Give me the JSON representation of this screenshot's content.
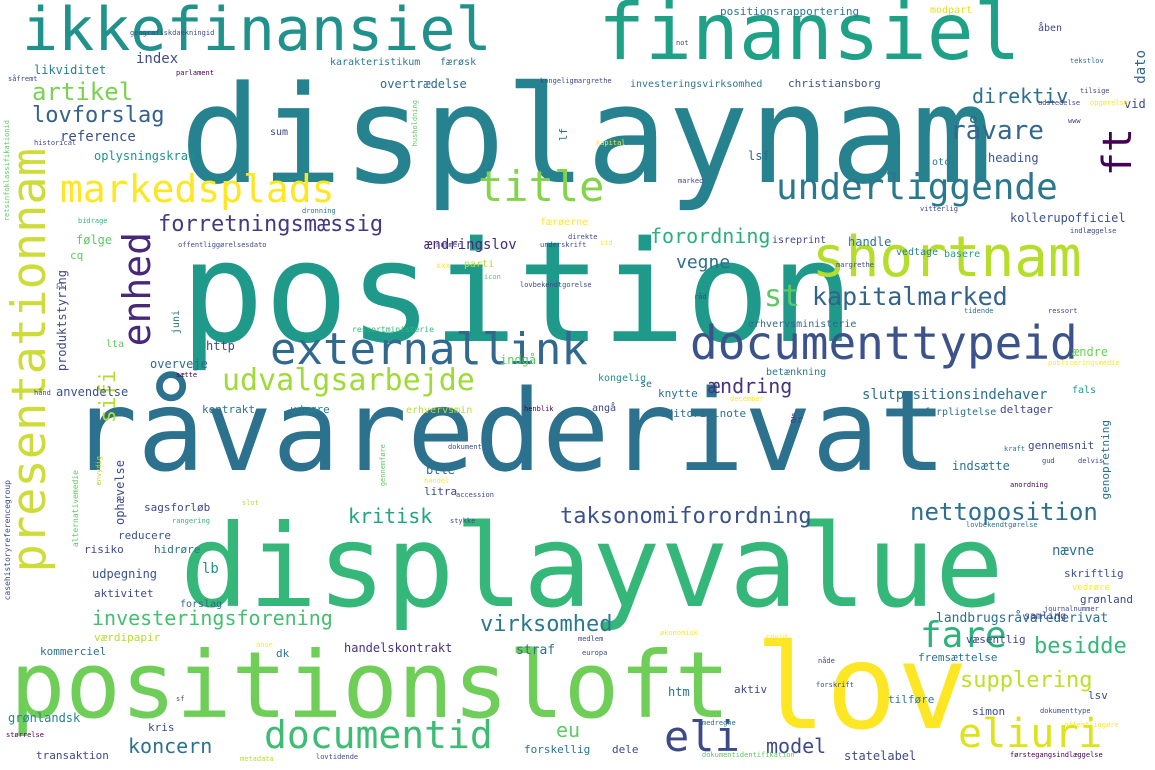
{
  "words": [
    {
      "text": "displaynam",
      "color": "#26828e"
    },
    {
      "text": "position",
      "color": "#1f9a8a"
    },
    {
      "text": "råvarederivat",
      "color": "#2c718e"
    },
    {
      "text": "displayvalue",
      "color": "#35b779"
    },
    {
      "text": "positionsloft",
      "color": "#6ece58"
    },
    {
      "text": "lov",
      "color": "#fde725"
    },
    {
      "text": "finansiel",
      "color": "#1fa188"
    },
    {
      "text": "ikkefinansiel",
      "color": "#21918c"
    },
    {
      "text": "shortnam",
      "color": "#b5de2b"
    },
    {
      "text": "documenttypeid",
      "color": "#3b528b"
    },
    {
      "text": "externallink",
      "color": "#31688e"
    },
    {
      "text": "presentationnam",
      "color": "#cddc39"
    },
    {
      "text": "markedsplads",
      "color": "#fde725"
    },
    {
      "text": "title",
      "color": "#84d44b"
    },
    {
      "text": "underliggende",
      "color": "#2a788e"
    },
    {
      "text": "enhed",
      "color": "#482878"
    },
    {
      "text": "udvalgsarbejde",
      "color": "#a0da39"
    },
    {
      "text": "documentid",
      "color": "#3dbc74"
    },
    {
      "text": "eliuri",
      "color": "#dde318"
    },
    {
      "text": "eli",
      "color": "#3e4989"
    },
    {
      "text": "fare",
      "color": "#2db27d"
    },
    {
      "text": "artikel",
      "color": "#7ad151"
    },
    {
      "text": "lovforslag",
      "color": "#34618d"
    },
    {
      "text": "kapitalmarked",
      "color": "#33638d"
    },
    {
      "text": "st",
      "color": "#5ec962"
    },
    {
      "text": "ft",
      "color": "#440154"
    },
    {
      "text": "nettoposition",
      "color": "#2e6f8e"
    },
    {
      "text": "råvare",
      "color": "#31688e"
    },
    {
      "text": "direktiv",
      "color": "#2c728e"
    },
    {
      "text": "forretningsmæssig",
      "color": "#443983"
    },
    {
      "text": "forordning",
      "color": "#2ab07f"
    },
    {
      "text": "vegne",
      "color": "#2e6e8e"
    },
    {
      "text": "ændring",
      "color": "#46337e"
    },
    {
      "text": "taksonomiforordning",
      "color": "#3b528b"
    },
    {
      "text": "kritisk",
      "color": "#20a486"
    },
    {
      "text": "investeringsforening",
      "color": "#44bf70"
    },
    {
      "text": "virksomhed",
      "color": "#2a788e"
    },
    {
      "text": "besidde",
      "color": "#35b779"
    },
    {
      "text": "supplering",
      "color": "#bddf26"
    },
    {
      "text": "koncern",
      "color": "#2c718e"
    },
    {
      "text": "model",
      "color": "#3e4989"
    },
    {
      "text": "eu",
      "color": "#5ec962"
    },
    {
      "text": "sifi",
      "color": "#b5de2b"
    },
    {
      "text": "reference",
      "color": "#3b528b"
    },
    {
      "text": "index",
      "color": "#3e4c8a"
    },
    {
      "text": "likviditet",
      "color": "#26828e"
    },
    {
      "text": "karakteristikum",
      "color": "#2a788e"
    },
    {
      "text": "færøsk",
      "color": "#2c728e"
    },
    {
      "text": "overtrædelse",
      "color": "#31688e"
    },
    {
      "text": "christiansborg",
      "color": "#3b528b"
    },
    {
      "text": "investeringsvirksomhed",
      "color": "#2a788e"
    },
    {
      "text": "positionsrapportering",
      "color": "#2a788e"
    },
    {
      "text": "modpart",
      "color": "#dde318"
    },
    {
      "text": "åben",
      "color": "#3e4989"
    },
    {
      "text": "dato",
      "color": "#31688e"
    },
    {
      "text": "vid",
      "color": "#3e4989"
    },
    {
      "text": "oplysningskrav",
      "color": "#21918c"
    },
    {
      "text": "heading",
      "color": "#3b528b"
    },
    {
      "text": "lsf",
      "color": "#31688e"
    },
    {
      "text": "otc",
      "color": "#2a788e"
    },
    {
      "text": "handle",
      "color": "#2c728e"
    },
    {
      "text": "isreprint",
      "color": "#3e4989"
    },
    {
      "text": "kollerupofficiel",
      "color": "#3b528b"
    },
    {
      "text": "vedtage",
      "color": "#26828e"
    },
    {
      "text": "basere",
      "color": "#1f9e89"
    },
    {
      "text": "følge",
      "color": "#5ec962"
    },
    {
      "text": "ændringslov",
      "color": "#482878"
    },
    {
      "text": "http",
      "color": "#3e4989"
    },
    {
      "text": "overveje",
      "color": "#31688e"
    },
    {
      "text": "anvendelse",
      "color": "#3b528b"
    },
    {
      "text": "produktstyring",
      "color": "#3e4989"
    },
    {
      "text": "kontrakt",
      "color": "#2c728e"
    },
    {
      "text": "udgøre",
      "color": "#26828e"
    },
    {
      "text": "erhvervsmin",
      "color": "#b5de2b"
    },
    {
      "text": "editorialnote",
      "color": "#2e6e8e"
    },
    {
      "text": "deltager",
      "color": "#3e4989"
    },
    {
      "text": "slutpositionsindehaver",
      "color": "#2c728e"
    },
    {
      "text": "betænkning",
      "color": "#2a788e"
    },
    {
      "text": "knytte",
      "color": "#2c728e"
    },
    {
      "text": "indgå",
      "color": "#5ec962"
    },
    {
      "text": "kongelig",
      "color": "#21918c"
    },
    {
      "text": "fals",
      "color": "#1f9e89"
    },
    {
      "text": "forpligtelse",
      "color": "#2c728e"
    },
    {
      "text": "erhvervsministerie",
      "color": "#31688e"
    },
    {
      "text": "ændre",
      "color": "#6ece58"
    },
    {
      "text": "gennemsnit",
      "color": "#3e4989"
    },
    {
      "text": "indsætte",
      "color": "#2c728e"
    },
    {
      "text": "genopretning",
      "color": "#2c728e"
    },
    {
      "text": "btle",
      "color": "#2c728e"
    },
    {
      "text": "ophævelse",
      "color": "#3e4989"
    },
    {
      "text": "litra",
      "color": "#3e4989"
    },
    {
      "text": "sagsforløb",
      "color": "#3e4989"
    },
    {
      "text": "reducere",
      "color": "#3b528b"
    },
    {
      "text": "risiko",
      "color": "#3e4989"
    },
    {
      "text": "hidrøre",
      "color": "#2c728e"
    },
    {
      "text": "udpegning",
      "color": "#3b528b"
    },
    {
      "text": "aktivitet",
      "color": "#3e4989"
    },
    {
      "text": "nævne",
      "color": "#2c718e"
    },
    {
      "text": "lb",
      "color": "#21918c"
    },
    {
      "text": "forslag",
      "color": "#31688e"
    },
    {
      "text": "værdipapir",
      "color": "#b5de2b"
    },
    {
      "text": "landbrugsråvarederivat",
      "color": "#2e6f8e"
    },
    {
      "text": "væsentlig",
      "color": "#3e4989"
    },
    {
      "text": "grønland",
      "color": "#3e4989"
    },
    {
      "text": "skriftlig",
      "color": "#3b528b"
    },
    {
      "text": "handelskontrakt",
      "color": "#46337e"
    },
    {
      "text": "straf",
      "color": "#2c728e"
    },
    {
      "text": "samling",
      "color": "#3e4989"
    },
    {
      "text": "kommerciel",
      "color": "#2c728e"
    },
    {
      "text": "dk",
      "color": "#2c728e"
    },
    {
      "text": "htm",
      "color": "#2c728e"
    },
    {
      "text": "aktiv",
      "color": "#3e4989"
    },
    {
      "text": "fremsættelse",
      "color": "#2c728e"
    },
    {
      "text": "tilføre",
      "color": "#2a788e"
    },
    {
      "text": "simon",
      "color": "#3e4989"
    },
    {
      "text": "lsv",
      "color": "#3e4989"
    },
    {
      "text": "grønlandsk",
      "color": "#26828e"
    },
    {
      "text": "kris",
      "color": "#3e4989"
    },
    {
      "text": "transaktion",
      "color": "#3e4989"
    },
    {
      "text": "forskellig",
      "color": "#2c728e"
    },
    {
      "text": "dele",
      "color": "#3e4989"
    },
    {
      "text": "statelabel",
      "color": "#3e4989"
    },
    {
      "text": "sum",
      "color": "#3e4989"
    },
    {
      "text": "lf",
      "color": "#2c728e"
    },
    {
      "text": "cq",
      "color": "#5ec962"
    },
    {
      "text": "lta",
      "color": "#5ec962"
    },
    {
      "text": "juni",
      "color": "#2c728e"
    },
    {
      "text": "år",
      "color": "#3e4989"
    },
    {
      "text": "angå",
      "color": "#3e4989"
    },
    {
      "text": "se",
      "color": "#2c728e"
    },
    {
      "text": "vedrøre",
      "color": "#fde725"
    },
    {
      "text": "ressortministerie",
      "color": "#35b779"
    },
    {
      "text": "færøerne",
      "color": "#fde725"
    },
    {
      "text": "parti",
      "color": "#b5de2b"
    },
    {
      "text": "retsinfoklassifikationid",
      "color": "#5ec962"
    },
    {
      "text": "geografiskdaekningid",
      "color": "#3e4989"
    },
    {
      "text": "parlament",
      "color": "#440154"
    },
    {
      "text": "kongeligmargrethe",
      "color": "#3e4989"
    },
    {
      "text": "tekstlov",
      "color": "#2c728e"
    },
    {
      "text": "tilsige",
      "color": "#3e4989"
    },
    {
      "text": "opgørelse",
      "color": "#fde725"
    },
    {
      "text": "udstedelse",
      "color": "#3e4989"
    },
    {
      "text": "historical",
      "color": "#3e4989"
    },
    {
      "text": "husholdning",
      "color": "#5ec962"
    },
    {
      "text": "bidrage",
      "color": "#35b779"
    },
    {
      "text": "dronning",
      "color": "#2c728e"
    },
    {
      "text": "offentliggørelsesdato",
      "color": "#3e4989"
    },
    {
      "text": "nummer",
      "color": "#3e4989"
    },
    {
      "text": "underskrift",
      "color": "#3e4989"
    },
    {
      "text": "direkte",
      "color": "#3e4989"
    },
    {
      "text": "sid",
      "color": "#fde725"
    },
    {
      "text": "vitterlig",
      "color": "#3e4989"
    },
    {
      "text": "indlæggelse",
      "color": "#3e4989"
    },
    {
      "text": "margrethe",
      "color": "#3e4989"
    },
    {
      "text": "tidende",
      "color": "#2c728e"
    },
    {
      "text": "ressort",
      "color": "#3e4989"
    },
    {
      "text": "råd",
      "color": "#3e4989"
    },
    {
      "text": "publiceringsmedie",
      "color": "#fde725"
    },
    {
      "text": "december",
      "color": "#fde725"
    },
    {
      "text": "henblik",
      "color": "#440154"
    },
    {
      "text": "gennemføre",
      "color": "#5ec962"
    },
    {
      "text": "dokument",
      "color": "#3e4989"
    },
    {
      "text": "accession",
      "color": "#3e4989"
    },
    {
      "text": "anordning",
      "color": "#440154"
    },
    {
      "text": "kraft",
      "color": "#2c728e"
    },
    {
      "text": "gud",
      "color": "#3e4989"
    },
    {
      "text": "delvis",
      "color": "#3e4989"
    },
    {
      "text": "slot",
      "color": "#b5de2b"
    },
    {
      "text": "rangering",
      "color": "#35b779"
    },
    {
      "text": "stykke",
      "color": "#3e4989"
    },
    {
      "text": "lovbekendtgørelse",
      "color": "#2c728e"
    },
    {
      "text": "alternativemedie",
      "color": "#5ec962"
    },
    {
      "text": "casehistoryreferencegroup",
      "color": "#3e4989"
    },
    {
      "text": "medlem",
      "color": "#3e4989"
    },
    {
      "text": "europa",
      "color": "#3e4989"
    },
    {
      "text": "økonomisk",
      "color": "#fde725"
    },
    {
      "text": "journalnummer",
      "color": "#3e4989"
    },
    {
      "text": "covid",
      "color": "#fde725"
    },
    {
      "text": "anse",
      "color": "#fde725"
    },
    {
      "text": "nåde",
      "color": "#3e4989"
    },
    {
      "text": "forskrift",
      "color": "#3e4989"
    },
    {
      "text": "medregne",
      "color": "#2c728e"
    },
    {
      "text": "offentliggøre",
      "color": "#fde725"
    },
    {
      "text": "dokumenttype",
      "color": "#3e4989"
    },
    {
      "text": "sf",
      "color": "#3e4989"
    },
    {
      "text": "størrelse",
      "color": "#440154"
    },
    {
      "text": "metadata",
      "color": "#b5de2b"
    },
    {
      "text": "lovtidende",
      "color": "#3e4989"
    },
    {
      "text": "dokumentidentifikation",
      "color": "#5ec962"
    },
    {
      "text": "førstegangsindlæggelse",
      "color": "#440154"
    },
    {
      "text": "cc",
      "color": "#3e4989"
    },
    {
      "text": "hånd",
      "color": "#3e4989"
    },
    {
      "text": "envydig",
      "color": "#b5de2b"
    },
    {
      "text": "handel",
      "color": "#fde725"
    },
    {
      "text": "sætte",
      "color": "#440154"
    },
    {
      "text": "kapital",
      "color": "#fde725"
    },
    {
      "text": "not",
      "color": "#3e4989"
    },
    {
      "text": "såfremt",
      "color": "#3e4989"
    },
    {
      "text": "www",
      "color": "#3e4989"
    },
    {
      "text": "xxx",
      "color": "#fde725"
    },
    {
      "text": "icon",
      "color": "#5ec962"
    },
    {
      "text": "lovbekendtgorelse",
      "color": "#3e4989"
    },
    {
      "text": "marked",
      "color": "#3e4989"
    }
  ]
}
